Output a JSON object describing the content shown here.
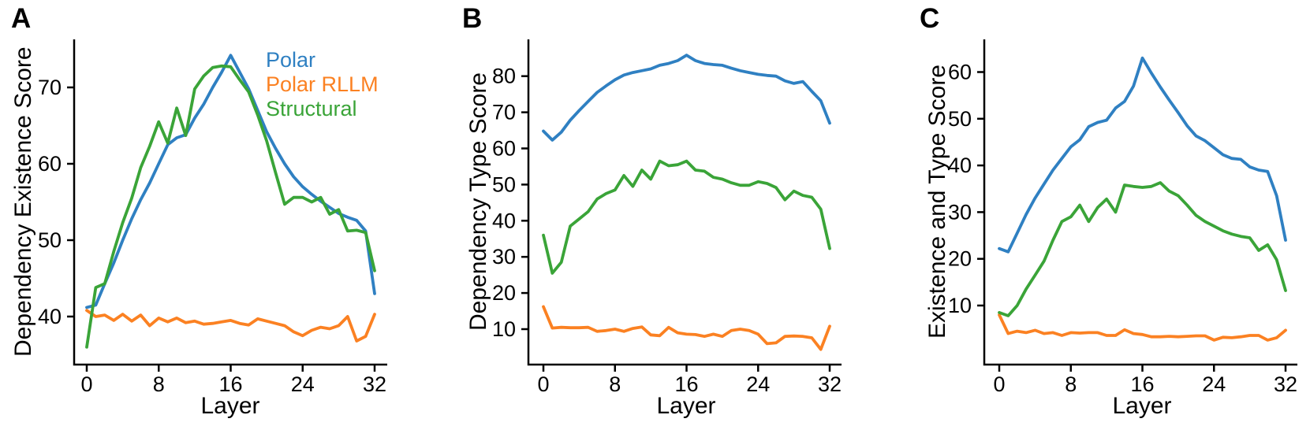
{
  "figure": {
    "background": "#ffffff",
    "text_color": "#000000",
    "axis_color": "#000000"
  },
  "legend": {
    "position": "upper-right-of-panel-A",
    "labels": [
      "Polar",
      "Polar RLLM",
      "Structural"
    ]
  },
  "chart_data": [
    {
      "type": "line",
      "panel_label": "A",
      "ylabel": "Dependency Existence Score",
      "xlabel": "Layer",
      "x_ticks": [
        0,
        8,
        16,
        24,
        32
      ],
      "y_ticks": [
        40,
        50,
        60,
        70
      ],
      "xlim": [
        0,
        32
      ],
      "ylim": [
        33.7,
        76.3
      ],
      "grid": false,
      "legend_visible": true,
      "x": [
        0,
        1,
        2,
        3,
        4,
        5,
        6,
        7,
        8,
        9,
        10,
        11,
        12,
        13,
        14,
        15,
        16,
        17,
        18,
        19,
        20,
        21,
        22,
        23,
        24,
        25,
        26,
        27,
        28,
        29,
        30,
        31,
        32
      ],
      "series": [
        {
          "name": "Polar",
          "color": "#2f80c2",
          "values": [
            41.2,
            41.5,
            44.3,
            47.0,
            50.0,
            52.8,
            55.3,
            57.5,
            60.0,
            62.5,
            63.4,
            63.8,
            66.0,
            67.8,
            70.0,
            72.0,
            74.2,
            72.0,
            69.8,
            67.0,
            64.2,
            62.0,
            60.0,
            58.3,
            57.0,
            56.0,
            55.1,
            54.3,
            53.5,
            53.0,
            52.6,
            51.2,
            43.0
          ]
        },
        {
          "name": "Polar RLLM",
          "color": "#fb8122",
          "values": [
            40.8,
            40.0,
            40.2,
            39.5,
            40.3,
            39.4,
            40.2,
            38.8,
            39.8,
            39.3,
            39.8,
            39.2,
            39.4,
            39.0,
            39.1,
            39.3,
            39.5,
            39.1,
            38.9,
            39.7,
            39.4,
            39.1,
            38.8,
            38.0,
            37.5,
            38.2,
            38.6,
            38.4,
            38.8,
            40.0,
            36.8,
            37.4,
            40.3
          ]
        },
        {
          "name": "Structural",
          "color": "#3aa438",
          "values": [
            36.0,
            43.8,
            44.3,
            48.5,
            52.3,
            55.5,
            59.5,
            62.3,
            65.5,
            62.7,
            67.3,
            63.7,
            69.8,
            71.5,
            72.6,
            72.8,
            72.7,
            71.0,
            69.4,
            66.4,
            63.0,
            58.8,
            54.7,
            55.6,
            55.6,
            55.0,
            55.6,
            53.4,
            54.0,
            51.2,
            51.3,
            51.0,
            46.0
          ]
        }
      ]
    },
    {
      "type": "line",
      "panel_label": "B",
      "ylabel": "Dependency Type Score",
      "xlabel": "Layer",
      "x_ticks": [
        0,
        8,
        16,
        24,
        32
      ],
      "y_ticks": [
        10,
        20,
        30,
        40,
        50,
        60,
        70,
        80
      ],
      "xlim": [
        0,
        32
      ],
      "ylim": [
        0.2,
        90.2
      ],
      "grid": false,
      "legend_visible": false,
      "x": [
        0,
        1,
        2,
        3,
        4,
        5,
        6,
        7,
        8,
        9,
        10,
        11,
        12,
        13,
        14,
        15,
        16,
        17,
        18,
        19,
        20,
        21,
        22,
        23,
        24,
        25,
        26,
        27,
        28,
        29,
        30,
        31,
        32
      ],
      "series": [
        {
          "name": "Polar",
          "color": "#2f80c2",
          "values": [
            64.8,
            62.3,
            64.5,
            67.8,
            70.5,
            73.0,
            75.5,
            77.3,
            79.0,
            80.3,
            81.0,
            81.5,
            82.0,
            83.0,
            83.5,
            84.3,
            85.8,
            84.3,
            83.5,
            83.2,
            83.0,
            82.2,
            81.5,
            81.0,
            80.5,
            80.2,
            80.0,
            78.7,
            78.0,
            78.5,
            75.8,
            73.2,
            67.0
          ]
        },
        {
          "name": "Polar RLLM",
          "color": "#fb8122",
          "values": [
            16.2,
            10.3,
            10.5,
            10.4,
            10.4,
            10.5,
            9.4,
            9.6,
            10.0,
            9.4,
            10.2,
            10.6,
            8.4,
            8.2,
            10.5,
            9.0,
            8.6,
            8.5,
            8.0,
            8.6,
            8.0,
            9.6,
            10.0,
            9.6,
            8.6,
            6.0,
            6.2,
            8.0,
            8.1,
            8.0,
            7.6,
            4.4,
            10.8
          ]
        },
        {
          "name": "Structural",
          "color": "#3aa438",
          "values": [
            36.0,
            25.5,
            28.5,
            38.5,
            40.5,
            42.5,
            46.0,
            47.5,
            48.5,
            52.5,
            49.5,
            54.0,
            51.5,
            56.5,
            55.2,
            55.5,
            56.5,
            54.0,
            53.7,
            52.0,
            51.5,
            50.5,
            49.8,
            49.8,
            50.8,
            50.3,
            49.2,
            45.8,
            48.2,
            47.0,
            46.5,
            43.2,
            32.3
          ]
        }
      ]
    },
    {
      "type": "line",
      "panel_label": "C",
      "ylabel": "Existence and Type Score",
      "xlabel": "Layer",
      "x_ticks": [
        0,
        8,
        16,
        24,
        32
      ],
      "y_ticks": [
        10,
        20,
        30,
        40,
        50,
        60
      ],
      "xlim": [
        0,
        32
      ],
      "ylim": [
        -2.6,
        67.0
      ],
      "grid": false,
      "legend_visible": false,
      "x": [
        0,
        1,
        2,
        3,
        4,
        5,
        6,
        7,
        8,
        9,
        10,
        11,
        12,
        13,
        14,
        15,
        16,
        17,
        18,
        19,
        20,
        21,
        22,
        23,
        24,
        25,
        26,
        27,
        28,
        29,
        30,
        31,
        32
      ],
      "series": [
        {
          "name": "Polar",
          "color": "#2f80c2",
          "values": [
            22.2,
            21.5,
            25.5,
            29.5,
            33.0,
            36.0,
            39.0,
            41.5,
            44.0,
            45.5,
            48.3,
            49.2,
            49.7,
            52.3,
            53.7,
            57.0,
            63.0,
            59.8,
            56.8,
            54.0,
            51.3,
            48.5,
            46.3,
            45.3,
            43.8,
            42.3,
            41.5,
            41.3,
            39.7,
            39.0,
            38.7,
            33.5,
            24.0
          ]
        },
        {
          "name": "Polar RLLM",
          "color": "#fb8122",
          "values": [
            8.0,
            4.0,
            4.5,
            4.2,
            4.7,
            4.0,
            4.2,
            3.6,
            4.2,
            4.1,
            4.2,
            4.2,
            3.6,
            3.6,
            4.8,
            4.0,
            3.8,
            3.3,
            3.3,
            3.4,
            3.3,
            3.4,
            3.5,
            3.5,
            2.6,
            3.2,
            3.1,
            3.3,
            3.6,
            3.6,
            2.6,
            3.1,
            4.7
          ]
        },
        {
          "name": "Structural",
          "color": "#3aa438",
          "values": [
            8.5,
            7.8,
            10.0,
            13.5,
            16.5,
            19.5,
            24.0,
            28.0,
            29.0,
            31.5,
            28.0,
            31.0,
            32.8,
            30.0,
            35.8,
            35.5,
            35.3,
            35.5,
            36.3,
            34.5,
            33.5,
            31.5,
            29.3,
            28.0,
            27.0,
            26.0,
            25.3,
            24.8,
            24.5,
            21.8,
            23.0,
            19.8,
            13.2
          ]
        }
      ]
    }
  ]
}
